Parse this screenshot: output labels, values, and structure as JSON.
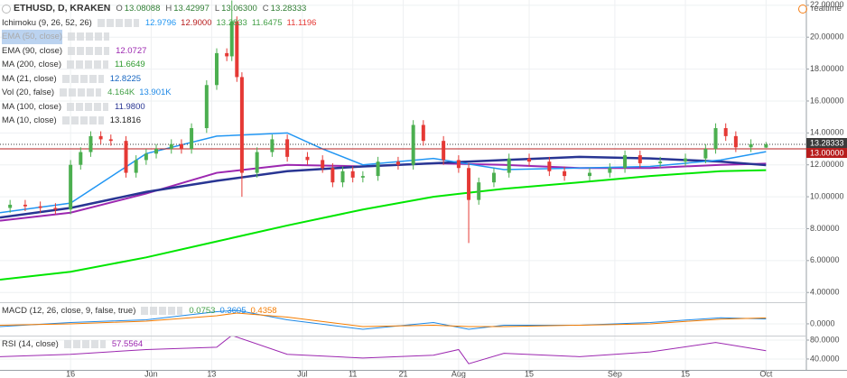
{
  "header": {
    "symbol": "ETHUSD, D, KRAKEN",
    "ohlc": [
      {
        "key": "O",
        "text": "13.08088"
      },
      {
        "key": "H",
        "text": "13.42997"
      },
      {
        "key": "L",
        "text": "13.06300"
      },
      {
        "key": "C",
        "text": "13.28333"
      }
    ],
    "realtime": "realtime"
  },
  "legend": [
    {
      "label": "Ichimoku (9, 26, 52, 26)",
      "values": [
        {
          "text": "12.9796",
          "color": "#2196f3"
        },
        {
          "text": "12.9000",
          "color": "#b71c1c"
        },
        {
          "text": "13.2833",
          "color": "#43a047"
        },
        {
          "text": "11.6475",
          "color": "#43a047"
        },
        {
          "text": "11.1196",
          "color": "#e53935"
        }
      ]
    },
    {
      "label": "EMA (50, close)",
      "values": []
    },
    {
      "label": "EMA (90, close)",
      "values": [
        {
          "text": "12.0727",
          "color": "#9c27b0"
        }
      ]
    },
    {
      "label": "MA (200, close)",
      "values": [
        {
          "text": "11.6649",
          "color": "#2e9a2e"
        }
      ]
    },
    {
      "label": "MA (21, close)",
      "values": [
        {
          "text": "12.8225",
          "color": "#1565c0"
        }
      ]
    },
    {
      "label": "Vol (20, false)",
      "values": [
        {
          "text": "4.164K",
          "color": "#43a047"
        },
        {
          "text": "13.901K",
          "color": "#1e88e5"
        }
      ]
    },
    {
      "label": "MA (100, close)",
      "values": [
        {
          "text": "11.9800",
          "color": "#283593"
        }
      ]
    },
    {
      "label": "MA (10, close)",
      "values": [
        {
          "text": "13.1816",
          "color": "#222222"
        }
      ]
    }
  ],
  "chart_data": [
    {
      "type": "candlestick",
      "xlim": [
        0,
        160
      ],
      "ylim": [
        3.39,
        22.33
      ],
      "grid": true,
      "up_color": "#4caf50",
      "down_color": "#e53935",
      "x": [
        2,
        5,
        8,
        11,
        14,
        16,
        18,
        20,
        22,
        25,
        27,
        29,
        31,
        34,
        36,
        38,
        41,
        43,
        45,
        46,
        47,
        48,
        51,
        54,
        57,
        61,
        64,
        66,
        68,
        70,
        72,
        75,
        79,
        82,
        84,
        88,
        91,
        93,
        95,
        98,
        101,
        105,
        109,
        112,
        117,
        121,
        124,
        127,
        131,
        136,
        140,
        142,
        144,
        146,
        149,
        152
      ],
      "open": [
        9.3,
        9.5,
        9.4,
        9.3,
        9.2,
        12.0,
        12.8,
        13.8,
        13.6,
        13.5,
        11.5,
        12.3,
        12.7,
        13.0,
        13.3,
        13.0,
        14.3,
        17.0,
        19.0,
        18.8,
        21.0,
        17.5,
        11.5,
        12.8,
        13.6,
        12.5,
        12.3,
        11.8,
        10.9,
        11.6,
        11.2,
        11.3,
        12.2,
        12.0,
        14.5,
        13.5,
        12.3,
        11.8,
        9.8,
        10.9,
        11.5,
        12.4,
        12.2,
        11.6,
        11.3,
        11.5,
        11.8,
        12.6,
        12.1,
        12.2,
        12.4,
        13.0,
        14.3,
        13.8,
        13.1,
        13.08088
      ],
      "high": [
        9.8,
        9.8,
        9.7,
        9.6,
        12.3,
        13.1,
        14.1,
        14.1,
        13.9,
        13.8,
        12.6,
        13.0,
        13.3,
        13.6,
        13.6,
        14.6,
        17.3,
        19.3,
        19.3,
        22.3,
        21.3,
        17.8,
        13.1,
        13.9,
        13.9,
        12.8,
        12.6,
        12.1,
        11.9,
        11.9,
        11.6,
        12.5,
        12.5,
        14.8,
        14.8,
        13.8,
        12.6,
        12.1,
        11.2,
        11.8,
        12.7,
        12.7,
        12.5,
        11.9,
        11.8,
        12.1,
        12.9,
        12.9,
        12.5,
        12.7,
        13.3,
        14.6,
        14.6,
        14.1,
        13.6,
        13.42997
      ],
      "low": [
        9.0,
        9.1,
        9.0,
        8.9,
        8.9,
        11.7,
        12.5,
        13.3,
        13.2,
        11.2,
        11.2,
        12.0,
        12.4,
        12.7,
        12.7,
        12.7,
        14.0,
        16.7,
        18.5,
        18.5,
        17.2,
        10.0,
        11.2,
        12.5,
        12.2,
        12.0,
        11.5,
        10.6,
        10.6,
        10.9,
        10.9,
        11.0,
        11.7,
        11.7,
        13.2,
        12.0,
        11.5,
        7.1,
        9.5,
        10.6,
        11.2,
        11.9,
        11.3,
        11.0,
        11.0,
        11.2,
        11.5,
        11.8,
        11.8,
        11.9,
        12.1,
        12.7,
        13.5,
        12.8,
        12.8,
        13.063
      ],
      "close": [
        9.5,
        9.4,
        9.3,
        9.2,
        12.0,
        12.8,
        13.8,
        13.6,
        13.5,
        11.5,
        12.3,
        12.7,
        13.0,
        13.3,
        13.0,
        14.3,
        17.0,
        19.0,
        18.8,
        21.0,
        17.5,
        11.5,
        12.8,
        13.6,
        12.5,
        12.3,
        11.8,
        10.9,
        11.6,
        11.2,
        11.3,
        12.2,
        12.0,
        14.5,
        13.5,
        12.3,
        11.8,
        9.8,
        10.9,
        11.5,
        12.4,
        12.2,
        11.6,
        11.3,
        11.5,
        11.8,
        12.6,
        12.1,
        12.2,
        12.4,
        13.0,
        14.3,
        13.8,
        13.1,
        13.3,
        13.28333
      ],
      "series": [
        {
          "color": "#00e600",
          "width": 2,
          "x": [
            0,
            14,
            29,
            43,
            57,
            72,
            86,
            100,
            115,
            129,
            143,
            152
          ],
          "values": [
            4.8,
            5.3,
            6.2,
            7.2,
            8.2,
            9.2,
            10.0,
            10.5,
            10.9,
            11.3,
            11.6,
            11.6649
          ]
        },
        {
          "color": "#9c27b0",
          "width": 2,
          "x": [
            0,
            14,
            29,
            43,
            57,
            72,
            86,
            100,
            115,
            129,
            143,
            152
          ],
          "values": [
            8.5,
            9.0,
            10.2,
            11.5,
            12.0,
            11.9,
            12.1,
            12.0,
            11.8,
            11.8,
            12.0,
            12.0727
          ]
        },
        {
          "color": "#283593",
          "width": 2.5,
          "x": [
            0,
            14,
            29,
            43,
            57,
            72,
            86,
            100,
            115,
            129,
            143,
            152
          ],
          "values": [
            8.7,
            9.3,
            10.3,
            11.0,
            11.6,
            11.9,
            12.1,
            12.3,
            12.5,
            12.4,
            12.2,
            11.98
          ]
        },
        {
          "color": "#2196f3",
          "width": 1.5,
          "x": [
            0,
            14,
            29,
            43,
            57,
            64,
            72,
            86,
            100,
            115,
            129,
            143,
            152
          ],
          "values": [
            9.0,
            9.6,
            12.7,
            13.8,
            14.0,
            13.0,
            12.0,
            12.4,
            11.7,
            11.8,
            11.9,
            12.3,
            12.8225
          ]
        }
      ],
      "price_lines": [
        {
          "value": 13.28333,
          "label": "13.28333",
          "color": "#3b3b3b"
        },
        {
          "value": 13,
          "label": "13.00000",
          "color": "#b71c1c"
        }
      ],
      "yticks": [
        {
          "value": 22,
          "label": "22.00000"
        },
        {
          "value": 20,
          "label": "20.00000"
        },
        {
          "value": 18,
          "label": "18.00000"
        },
        {
          "value": 16,
          "label": "16.00000"
        },
        {
          "value": 14,
          "label": "14.00000"
        },
        {
          "value": 12,
          "label": "12.00000"
        },
        {
          "value": 10,
          "label": "10.00000"
        },
        {
          "value": 8,
          "label": "8.00000"
        },
        {
          "value": 6,
          "label": "6.00000"
        },
        {
          "value": 4,
          "label": "4.00000"
        }
      ]
    },
    {
      "type": "line",
      "title": "MACD (12, 26, close, 9, false, true)",
      "title_values": [
        {
          "text": "0.0753",
          "color": "#43a047"
        },
        {
          "text": "0.3605",
          "color": "#1e88e5"
        },
        {
          "text": "0.4358",
          "color": "#f57c00"
        }
      ],
      "xlim": [
        0,
        160
      ],
      "ylim": [
        -0.87,
        1.53
      ],
      "grid": true,
      "yticks": [
        {
          "value": 0,
          "label": "0.0000"
        }
      ],
      "series": [
        {
          "color": "#1e88e5",
          "width": 1,
          "x": [
            0,
            14,
            29,
            43,
            47,
            57,
            72,
            86,
            93,
            100,
            115,
            129,
            143,
            152
          ],
          "values": [
            -0.2,
            0.1,
            0.3,
            0.9,
            1.0,
            0.3,
            -0.4,
            0.1,
            -0.4,
            -0.1,
            -0.1,
            0.1,
            0.45,
            0.3605
          ]
        },
        {
          "color": "#f57c00",
          "width": 1,
          "x": [
            0,
            14,
            29,
            43,
            47,
            57,
            72,
            86,
            93,
            100,
            115,
            129,
            143,
            152
          ],
          "values": [
            -0.1,
            0.0,
            0.2,
            0.6,
            0.8,
            0.5,
            -0.2,
            -0.1,
            -0.2,
            -0.2,
            -0.1,
            0.0,
            0.35,
            0.4358
          ]
        }
      ]
    },
    {
      "type": "line",
      "title": "RSI (14, close)",
      "title_values": [
        {
          "text": "57.5564",
          "color": "#9c27b0"
        }
      ],
      "xlim": [
        0,
        160
      ],
      "ylim": [
        17,
        87.6
      ],
      "grid": true,
      "yticks": [
        {
          "value": 80,
          "label": "80.0000"
        },
        {
          "value": 40,
          "label": "40.0000"
        }
      ],
      "series": [
        {
          "color": "#9c27b0",
          "width": 1,
          "x": [
            0,
            14,
            29,
            43,
            46,
            57,
            72,
            86,
            91,
            93,
            100,
            115,
            129,
            142,
            152
          ],
          "values": [
            45,
            50,
            60,
            65,
            90,
            50,
            42,
            48,
            60,
            30,
            52,
            45,
            55,
            75,
            57.5564
          ]
        }
      ],
      "xticks": [
        {
          "value": 14,
          "label": "16"
        },
        {
          "value": 30,
          "label": "Jun"
        },
        {
          "value": 42,
          "label": "13"
        },
        {
          "value": 60,
          "label": "Jul"
        },
        {
          "value": 70,
          "label": "11"
        },
        {
          "value": 80,
          "label": "21"
        },
        {
          "value": 91,
          "label": "Aug"
        },
        {
          "value": 105,
          "label": "15"
        },
        {
          "value": 122,
          "label": "Sep"
        },
        {
          "value": 136,
          "label": "15"
        },
        {
          "value": 152,
          "label": "Oct"
        }
      ]
    }
  ]
}
